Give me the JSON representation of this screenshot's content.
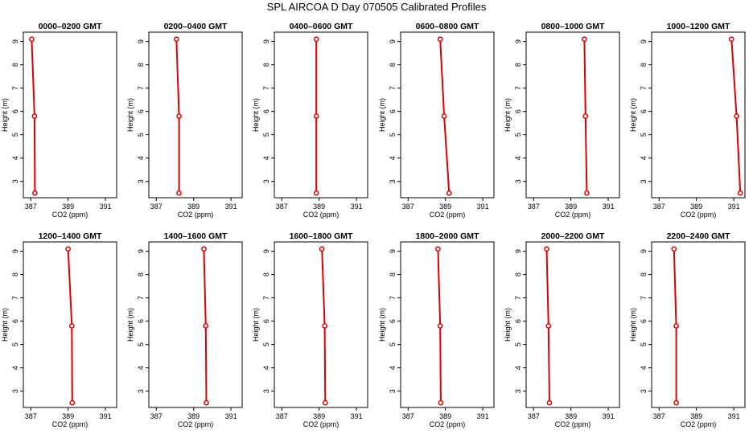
{
  "figure": {
    "title": "SPL AIRCOA D  Day 070505  Calibrated Profiles"
  },
  "style": {
    "line_color": "#dd0000",
    "marker_color": "#dd0000",
    "frame_color": "#000000",
    "background": "#ffffff"
  },
  "chart_data": [
    {
      "type": "line",
      "title": "0000–0200 GMT",
      "xlabel": "CO2 (ppm)",
      "ylabel": "Height (m)",
      "xlim": [
        386.6,
        391.6
      ],
      "ylim": [
        2.3,
        9.4
      ],
      "xticks": [
        387,
        389,
        391
      ],
      "yticks": [
        3,
        4,
        5,
        6,
        7,
        8,
        9
      ],
      "series": [
        {
          "x": [
            387.05,
            387.2,
            387.22
          ],
          "y": [
            9.1,
            5.8,
            2.5
          ]
        }
      ]
    },
    {
      "type": "line",
      "title": "0200–0400 GMT",
      "xlabel": "CO2 (ppm)",
      "ylabel": "Height (m)",
      "xlim": [
        386.6,
        391.6
      ],
      "ylim": [
        2.3,
        9.4
      ],
      "xticks": [
        387,
        389,
        391
      ],
      "yticks": [
        3,
        4,
        5,
        6,
        7,
        8,
        9
      ],
      "series": [
        {
          "x": [
            388.08,
            388.22,
            388.22
          ],
          "y": [
            9.1,
            5.8,
            2.5
          ]
        }
      ]
    },
    {
      "type": "line",
      "title": "0400–0600 GMT",
      "xlabel": "CO2 (ppm)",
      "ylabel": "Height (m)",
      "xlim": [
        386.6,
        391.6
      ],
      "ylim": [
        2.3,
        9.4
      ],
      "xticks": [
        387,
        389,
        391
      ],
      "yticks": [
        3,
        4,
        5,
        6,
        7,
        8,
        9
      ],
      "series": [
        {
          "x": [
            388.85,
            388.85,
            388.85
          ],
          "y": [
            9.1,
            5.8,
            2.5
          ]
        }
      ]
    },
    {
      "type": "line",
      "title": "0600–0800 GMT",
      "xlabel": "CO2 (ppm)",
      "ylabel": "Height (m)",
      "xlim": [
        386.6,
        391.6
      ],
      "ylim": [
        2.3,
        9.4
      ],
      "xticks": [
        387,
        389,
        391
      ],
      "yticks": [
        3,
        4,
        5,
        6,
        7,
        8,
        9
      ],
      "series": [
        {
          "x": [
            388.72,
            388.93,
            389.2
          ],
          "y": [
            9.1,
            5.8,
            2.5
          ]
        }
      ]
    },
    {
      "type": "line",
      "title": "0800–1000 GMT",
      "xlabel": "CO2 (ppm)",
      "ylabel": "Height (m)",
      "xlim": [
        386.6,
        391.6
      ],
      "ylim": [
        2.3,
        9.4
      ],
      "xticks": [
        387,
        389,
        391
      ],
      "yticks": [
        3,
        4,
        5,
        6,
        7,
        8,
        9
      ],
      "series": [
        {
          "x": [
            389.72,
            389.78,
            389.85
          ],
          "y": [
            9.1,
            5.8,
            2.5
          ]
        }
      ]
    },
    {
      "type": "line",
      "title": "1000–1200 GMT",
      "xlabel": "CO2 (ppm)",
      "ylabel": "Height (m)",
      "xlim": [
        386.6,
        391.6
      ],
      "ylim": [
        2.3,
        9.4
      ],
      "xticks": [
        387,
        389,
        391
      ],
      "yticks": [
        3,
        4,
        5,
        6,
        7,
        8,
        9
      ],
      "series": [
        {
          "x": [
            390.88,
            391.15,
            391.35
          ],
          "y": [
            9.1,
            5.8,
            2.5
          ]
        }
      ]
    },
    {
      "type": "line",
      "title": "1200–1400 GMT",
      "xlabel": "CO2 (ppm)",
      "ylabel": "Height (m)",
      "xlim": [
        386.6,
        391.6
      ],
      "ylim": [
        2.3,
        9.4
      ],
      "xticks": [
        387,
        389,
        391
      ],
      "yticks": [
        3,
        4,
        5,
        6,
        7,
        8,
        9
      ],
      "series": [
        {
          "x": [
            389.0,
            389.2,
            389.22
          ],
          "y": [
            9.1,
            5.8,
            2.5
          ]
        }
      ]
    },
    {
      "type": "line",
      "title": "1400–1600 GMT",
      "xlabel": "CO2 (ppm)",
      "ylabel": "Height (m)",
      "xlim": [
        386.6,
        391.6
      ],
      "ylim": [
        2.3,
        9.4
      ],
      "xticks": [
        387,
        389,
        391
      ],
      "yticks": [
        3,
        4,
        5,
        6,
        7,
        8,
        9
      ],
      "series": [
        {
          "x": [
            389.55,
            389.65,
            389.68
          ],
          "y": [
            9.1,
            5.8,
            2.5
          ]
        }
      ]
    },
    {
      "type": "line",
      "title": "1600–1800 GMT",
      "xlabel": "CO2 (ppm)",
      "ylabel": "Height (m)",
      "xlim": [
        386.6,
        391.6
      ],
      "ylim": [
        2.3,
        9.4
      ],
      "xticks": [
        387,
        389,
        391
      ],
      "yticks": [
        3,
        4,
        5,
        6,
        7,
        8,
        9
      ],
      "series": [
        {
          "x": [
            389.15,
            389.3,
            389.33
          ],
          "y": [
            9.1,
            5.8,
            2.5
          ]
        }
      ]
    },
    {
      "type": "line",
      "title": "1800–2000 GMT",
      "xlabel": "CO2 (ppm)",
      "ylabel": "Height (m)",
      "xlim": [
        386.6,
        391.6
      ],
      "ylim": [
        2.3,
        9.4
      ],
      "xticks": [
        387,
        389,
        391
      ],
      "yticks": [
        3,
        4,
        5,
        6,
        7,
        8,
        9
      ],
      "series": [
        {
          "x": [
            388.6,
            388.72,
            388.75
          ],
          "y": [
            9.1,
            5.8,
            2.5
          ]
        }
      ]
    },
    {
      "type": "line",
      "title": "2000–2200 GMT",
      "xlabel": "CO2 (ppm)",
      "ylabel": "Height (m)",
      "xlim": [
        386.6,
        391.6
      ],
      "ylim": [
        2.3,
        9.4
      ],
      "xticks": [
        387,
        389,
        391
      ],
      "yticks": [
        3,
        4,
        5,
        6,
        7,
        8,
        9
      ],
      "series": [
        {
          "x": [
            387.7,
            387.8,
            387.85
          ],
          "y": [
            9.1,
            5.8,
            2.5
          ]
        }
      ]
    },
    {
      "type": "line",
      "title": "2200–2400 GMT",
      "xlabel": "CO2 (ppm)",
      "ylabel": "Height (m)",
      "xlim": [
        386.6,
        391.6
      ],
      "ylim": [
        2.3,
        9.4
      ],
      "xticks": [
        387,
        389,
        391
      ],
      "yticks": [
        3,
        4,
        5,
        6,
        7,
        8,
        9
      ],
      "series": [
        {
          "x": [
            387.8,
            387.92,
            387.92
          ],
          "y": [
            9.1,
            5.8,
            2.5
          ]
        }
      ]
    }
  ]
}
